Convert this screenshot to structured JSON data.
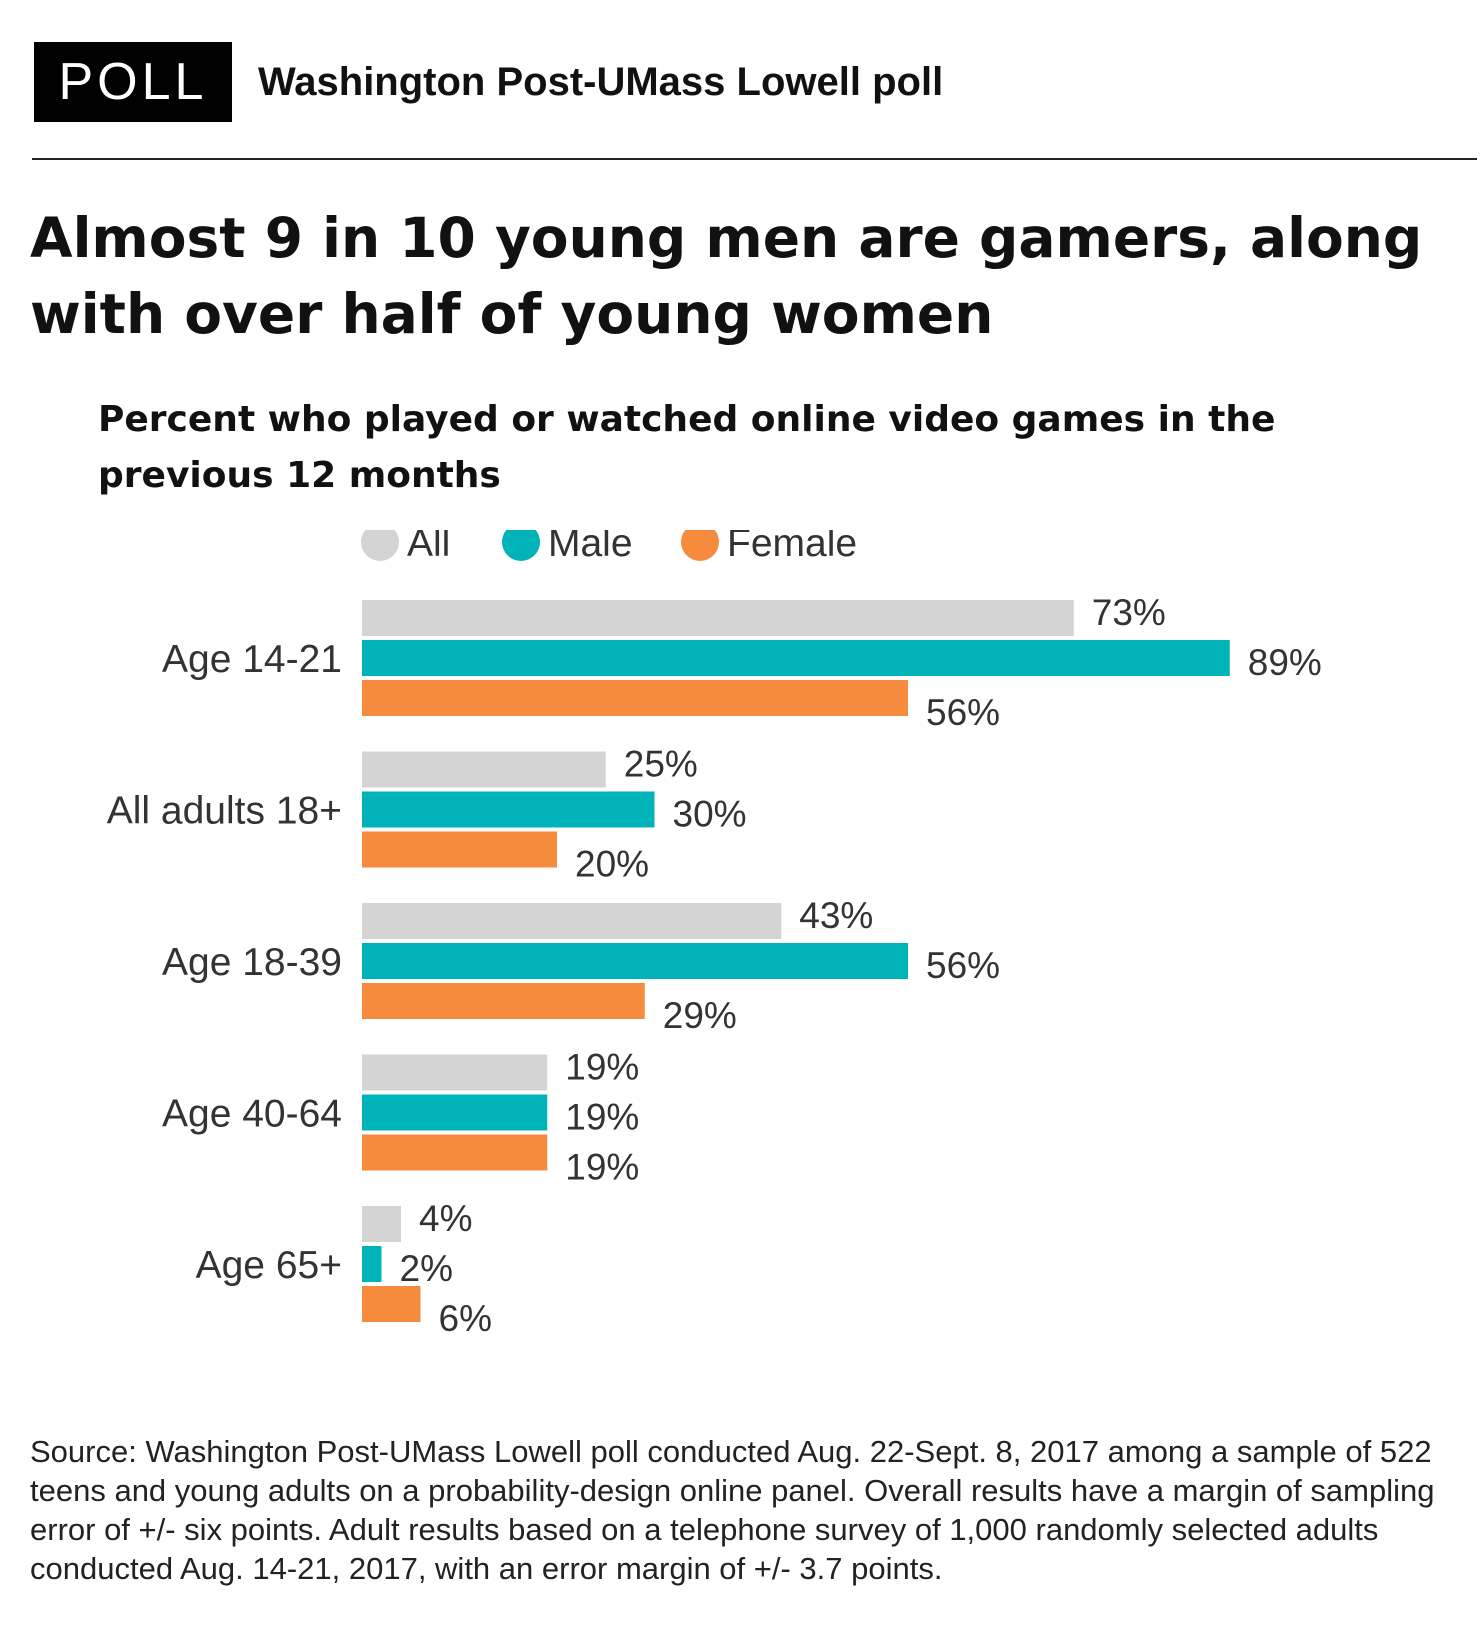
{
  "header": {
    "badge": "POLL",
    "title": "Washington Post-UMass Lowell poll"
  },
  "headline": "Almost 9 in 10 young men are gamers, along with over half of young women",
  "colors": {
    "All": "#d4d4d4",
    "Male": "#00b3b8",
    "Female": "#f68b3d"
  },
  "chart_data": {
    "type": "bar",
    "orientation": "horizontal",
    "title": "Percent who played or watched online video games in the previous 12 months",
    "categories": [
      "Age 14-21",
      "All adults 18+",
      "Age 18-39",
      "Age 40-64",
      "Age 65+"
    ],
    "series": [
      {
        "name": "All",
        "values": [
          73,
          25,
          43,
          19,
          4
        ],
        "labels": [
          "73%",
          "25%",
          "43%",
          "19%",
          "4%"
        ]
      },
      {
        "name": "Male",
        "values": [
          89,
          30,
          56,
          19,
          2
        ],
        "labels": [
          "89%",
          "30%",
          "56%",
          "19%",
          "2%"
        ]
      },
      {
        "name": "Female",
        "values": [
          56,
          20,
          29,
          19,
          6
        ],
        "labels": [
          "56%",
          "20%",
          "29%",
          "19%",
          "6%"
        ]
      }
    ],
    "xlim": [
      0,
      100
    ],
    "legend": "top",
    "grid": false
  },
  "source": "Source: Washington Post-UMass Lowell poll conducted Aug. 22-Sept. 8, 2017 among a sample of 522 teens and young adults on a probability-design online panel. Overall results have a margin of sampling error of +/- six points. Adult results based on a telephone survey of 1,000 randomly selected adults conducted Aug. 14-21, 2017, with an error margin of +/- 3.7 points."
}
